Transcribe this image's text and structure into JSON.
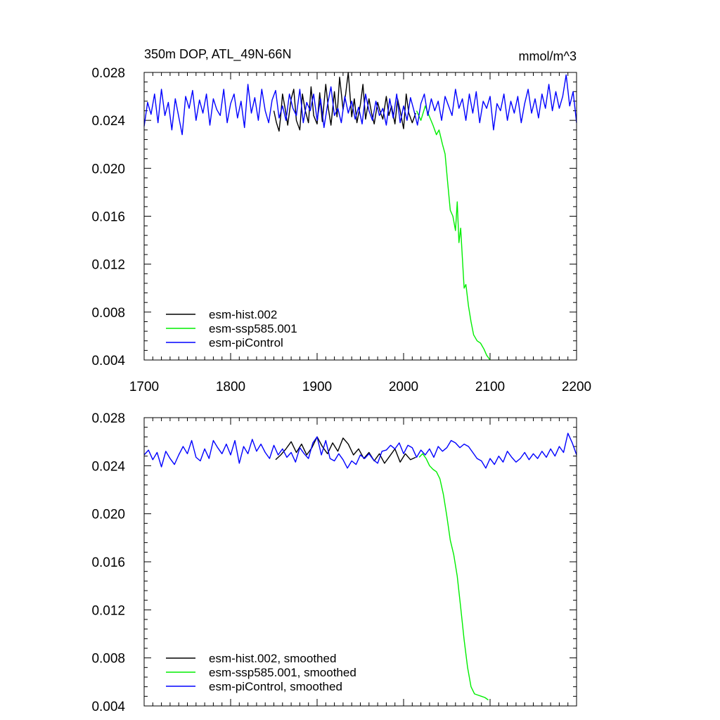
{
  "figure": {
    "title": "350m DOP, ATL_49N-66N",
    "units": "mmol/m^3"
  },
  "colors": {
    "esm-hist.002": "#000000",
    "esm-ssp585.001": "#00ee00",
    "esm-piControl": "#0000ff"
  },
  "chart_data": [
    {
      "type": "line",
      "panel": "top",
      "xlim": [
        1700,
        2200
      ],
      "ylim": [
        0.004,
        0.028
      ],
      "xticks": [
        1700,
        1800,
        1900,
        2000,
        2100,
        2200
      ],
      "x_tick_labels": [
        "1700",
        "1800",
        "1900",
        "2000",
        "2100",
        "2200"
      ],
      "yticks": [
        0.004,
        0.008,
        0.012,
        0.016,
        0.02,
        0.024,
        0.028
      ],
      "y_tick_labels": [
        "0.004",
        "0.008",
        "0.012",
        "0.016",
        "0.020",
        "0.024",
        "0.028"
      ],
      "legend_position": "bottom-left",
      "series": [
        {
          "name": "esm-hist.002",
          "color": "#000000",
          "x": [
            1850,
            1853,
            1856,
            1858,
            1860,
            1863,
            1866,
            1870,
            1873,
            1876,
            1880,
            1883,
            1886,
            1890,
            1893,
            1896,
            1900,
            1903,
            1906,
            1910,
            1913,
            1916,
            1920,
            1923,
            1926,
            1930,
            1933,
            1936,
            1940,
            1943,
            1946,
            1950,
            1953,
            1956,
            1960,
            1963,
            1966,
            1970,
            1973,
            1976,
            1980,
            1983,
            1986,
            1990,
            1993,
            1996,
            2000,
            2003,
            2006,
            2010,
            2014
          ],
          "y": [
            0.0248,
            0.0238,
            0.0231,
            0.0244,
            0.0262,
            0.025,
            0.0236,
            0.0258,
            0.0266,
            0.024,
            0.0232,
            0.0262,
            0.0249,
            0.0238,
            0.0268,
            0.0244,
            0.0237,
            0.0263,
            0.0239,
            0.027,
            0.025,
            0.0236,
            0.0264,
            0.0243,
            0.0276,
            0.0249,
            0.0262,
            0.028,
            0.0243,
            0.0258,
            0.0238,
            0.0253,
            0.027,
            0.0241,
            0.0258,
            0.0246,
            0.0237,
            0.0255,
            0.0247,
            0.0241,
            0.026,
            0.0244,
            0.0252,
            0.0237,
            0.0258,
            0.0248,
            0.0233,
            0.0262,
            0.0246,
            0.0238,
            0.0246
          ]
        },
        {
          "name": "esm-ssp585.001",
          "color": "#00ee00",
          "x": [
            2015,
            2020,
            2025,
            2030,
            2034,
            2038,
            2041,
            2045,
            2048,
            2051,
            2054,
            2057,
            2060,
            2062,
            2064,
            2066,
            2068,
            2070,
            2072,
            2075,
            2078,
            2081,
            2085,
            2089,
            2093,
            2096,
            2100
          ],
          "y": [
            0.0248,
            0.024,
            0.0252,
            0.0243,
            0.0236,
            0.0228,
            0.0232,
            0.022,
            0.0212,
            0.0188,
            0.0165,
            0.016,
            0.0148,
            0.0172,
            0.0138,
            0.015,
            0.0125,
            0.01,
            0.0103,
            0.0085,
            0.0072,
            0.0061,
            0.0056,
            0.0054,
            0.0049,
            0.0044,
            0.004
          ]
        },
        {
          "name": "esm-piControl",
          "color": "#0000ff",
          "x": [
            1700,
            1704,
            1708,
            1712,
            1716,
            1720,
            1724,
            1728,
            1732,
            1736,
            1740,
            1744,
            1748,
            1752,
            1756,
            1760,
            1764,
            1768,
            1772,
            1776,
            1780,
            1784,
            1788,
            1792,
            1796,
            1800,
            1804,
            1808,
            1812,
            1816,
            1820,
            1824,
            1828,
            1832,
            1836,
            1840,
            1844,
            1848,
            1852,
            1856,
            1860,
            1864,
            1868,
            1872,
            1876,
            1880,
            1884,
            1888,
            1892,
            1896,
            1900,
            1904,
            1908,
            1912,
            1916,
            1920,
            1924,
            1928,
            1932,
            1936,
            1940,
            1944,
            1948,
            1952,
            1956,
            1960,
            1964,
            1968,
            1972,
            1976,
            1980,
            1984,
            1988,
            1992,
            1996,
            2000,
            2004,
            2008,
            2012,
            2016,
            2020,
            2024,
            2028,
            2032,
            2036,
            2040,
            2044,
            2048,
            2052,
            2056,
            2060,
            2064,
            2068,
            2072,
            2076,
            2080,
            2084,
            2088,
            2092,
            2096,
            2100,
            2104,
            2108,
            2112,
            2116,
            2120,
            2124,
            2128,
            2132,
            2136,
            2140,
            2144,
            2148,
            2152,
            2156,
            2160,
            2164,
            2168,
            2172,
            2176,
            2180,
            2184,
            2188,
            2192,
            2196,
            2200
          ],
          "y": [
            0.0235,
            0.0255,
            0.0245,
            0.0262,
            0.0238,
            0.0266,
            0.0244,
            0.0255,
            0.0232,
            0.0258,
            0.0243,
            0.0228,
            0.026,
            0.025,
            0.0265,
            0.024,
            0.0257,
            0.0246,
            0.0262,
            0.0236,
            0.0258,
            0.0249,
            0.0244,
            0.0266,
            0.0238,
            0.0254,
            0.0262,
            0.0242,
            0.0256,
            0.0234,
            0.027,
            0.0246,
            0.0259,
            0.024,
            0.0266,
            0.0248,
            0.0238,
            0.0257,
            0.0265,
            0.0242,
            0.0252,
            0.024,
            0.0262,
            0.025,
            0.0244,
            0.0266,
            0.0238,
            0.0255,
            0.0248,
            0.0262,
            0.024,
            0.0258,
            0.0234,
            0.0253,
            0.0268,
            0.0244,
            0.025,
            0.0238,
            0.026,
            0.0246,
            0.0256,
            0.0241,
            0.0251,
            0.0237,
            0.0262,
            0.0248,
            0.024,
            0.0256,
            0.0244,
            0.025,
            0.0236,
            0.0258,
            0.0242,
            0.0262,
            0.0238,
            0.0252,
            0.024,
            0.0259,
            0.0248,
            0.0236,
            0.0254,
            0.0262,
            0.0244,
            0.0258,
            0.0248,
            0.0256,
            0.024,
            0.026,
            0.0252,
            0.0244,
            0.0266,
            0.025,
            0.0258,
            0.024,
            0.0262,
            0.0246,
            0.0264,
            0.0238,
            0.0256,
            0.025,
            0.026,
            0.0232,
            0.0254,
            0.0248,
            0.0262,
            0.024,
            0.0256,
            0.0246,
            0.026,
            0.0238,
            0.0254,
            0.0266,
            0.0246,
            0.0258,
            0.0242,
            0.0262,
            0.025,
            0.027,
            0.0248,
            0.0264,
            0.025,
            0.026,
            0.0278,
            0.0252,
            0.0264,
            0.0238
          ]
        }
      ]
    },
    {
      "type": "line",
      "panel": "bottom",
      "xlim": [
        1700,
        2200
      ],
      "ylim": [
        0.004,
        0.028
      ],
      "xticks": [
        1700,
        1800,
        1900,
        2000,
        2100,
        2200
      ],
      "yticks": [
        0.004,
        0.008,
        0.012,
        0.016,
        0.02,
        0.024,
        0.028
      ],
      "y_tick_labels": [
        "0.004",
        "0.008",
        "0.012",
        "0.016",
        "0.020",
        "0.024",
        "0.028"
      ],
      "legend_position": "bottom-left",
      "series": [
        {
          "name": "esm-hist.002, smoothed",
          "color": "#000000",
          "x": [
            1852,
            1858,
            1864,
            1870,
            1876,
            1882,
            1888,
            1894,
            1900,
            1906,
            1912,
            1918,
            1924,
            1930,
            1936,
            1942,
            1948,
            1954,
            1960,
            1966,
            1972,
            1978,
            1984,
            1990,
            1996,
            2002,
            2008,
            2014
          ],
          "y": [
            0.0245,
            0.0249,
            0.0254,
            0.026,
            0.0251,
            0.0258,
            0.0249,
            0.0255,
            0.0264,
            0.0256,
            0.025,
            0.0259,
            0.0252,
            0.0263,
            0.0258,
            0.0249,
            0.0254,
            0.0246,
            0.0251,
            0.0244,
            0.025,
            0.0242,
            0.0248,
            0.0254,
            0.0243,
            0.025,
            0.0245,
            0.0247
          ]
        },
        {
          "name": "esm-ssp585.001, smoothed",
          "color": "#00ee00",
          "x": [
            2018,
            2022,
            2026,
            2030,
            2034,
            2038,
            2042,
            2046,
            2050,
            2054,
            2058,
            2062,
            2066,
            2070,
            2074,
            2078,
            2082,
            2086,
            2090,
            2094,
            2098
          ],
          "y": [
            0.0247,
            0.025,
            0.0246,
            0.024,
            0.0237,
            0.0235,
            0.0229,
            0.0216,
            0.0198,
            0.0178,
            0.0166,
            0.0148,
            0.0122,
            0.0095,
            0.0072,
            0.0056,
            0.005,
            0.0049,
            0.0048,
            0.0047,
            0.0045
          ]
        },
        {
          "name": "esm-piControl, smoothed",
          "color": "#0000ff",
          "x": [
            1700,
            1705,
            1710,
            1715,
            1720,
            1725,
            1730,
            1735,
            1740,
            1745,
            1750,
            1755,
            1760,
            1765,
            1770,
            1775,
            1780,
            1785,
            1790,
            1795,
            1800,
            1805,
            1810,
            1815,
            1820,
            1825,
            1830,
            1835,
            1840,
            1845,
            1850,
            1855,
            1860,
            1865,
            1870,
            1875,
            1880,
            1885,
            1890,
            1895,
            1900,
            1905,
            1910,
            1915,
            1920,
            1925,
            1930,
            1935,
            1940,
            1945,
            1950,
            1955,
            1960,
            1965,
            1970,
            1975,
            1980,
            1985,
            1990,
            1995,
            2000,
            2005,
            2010,
            2015,
            2020,
            2025,
            2030,
            2035,
            2040,
            2045,
            2050,
            2055,
            2060,
            2065,
            2070,
            2075,
            2080,
            2085,
            2090,
            2095,
            2100,
            2105,
            2110,
            2115,
            2120,
            2125,
            2130,
            2135,
            2140,
            2145,
            2150,
            2155,
            2160,
            2165,
            2170,
            2175,
            2180,
            2185,
            2190,
            2195,
            2200
          ],
          "y": [
            0.0249,
            0.0253,
            0.0245,
            0.0251,
            0.0239,
            0.0252,
            0.0246,
            0.0241,
            0.0249,
            0.0256,
            0.025,
            0.0261,
            0.0247,
            0.0244,
            0.0254,
            0.0246,
            0.0261,
            0.0255,
            0.025,
            0.0258,
            0.0249,
            0.0261,
            0.0242,
            0.0256,
            0.025,
            0.0262,
            0.0252,
            0.0258,
            0.0251,
            0.0246,
            0.0257,
            0.0249,
            0.0254,
            0.0247,
            0.0251,
            0.0243,
            0.0255,
            0.025,
            0.0246,
            0.0259,
            0.0264,
            0.0249,
            0.0261,
            0.0246,
            0.0244,
            0.025,
            0.0245,
            0.0238,
            0.0244,
            0.0241,
            0.0249,
            0.0246,
            0.025,
            0.0245,
            0.0242,
            0.0252,
            0.0253,
            0.0257,
            0.0254,
            0.0259,
            0.025,
            0.0257,
            0.0255,
            0.0247,
            0.0253,
            0.0249,
            0.0254,
            0.0247,
            0.0256,
            0.0252,
            0.0255,
            0.0261,
            0.0259,
            0.0255,
            0.0258,
            0.0256,
            0.0251,
            0.0246,
            0.0244,
            0.0238,
            0.0246,
            0.0241,
            0.0248,
            0.0243,
            0.0252,
            0.0247,
            0.0243,
            0.0246,
            0.0251,
            0.0245,
            0.025,
            0.0246,
            0.0252,
            0.0247,
            0.0254,
            0.0248,
            0.0256,
            0.0251,
            0.0267,
            0.0259,
            0.0249
          ]
        }
      ]
    }
  ]
}
